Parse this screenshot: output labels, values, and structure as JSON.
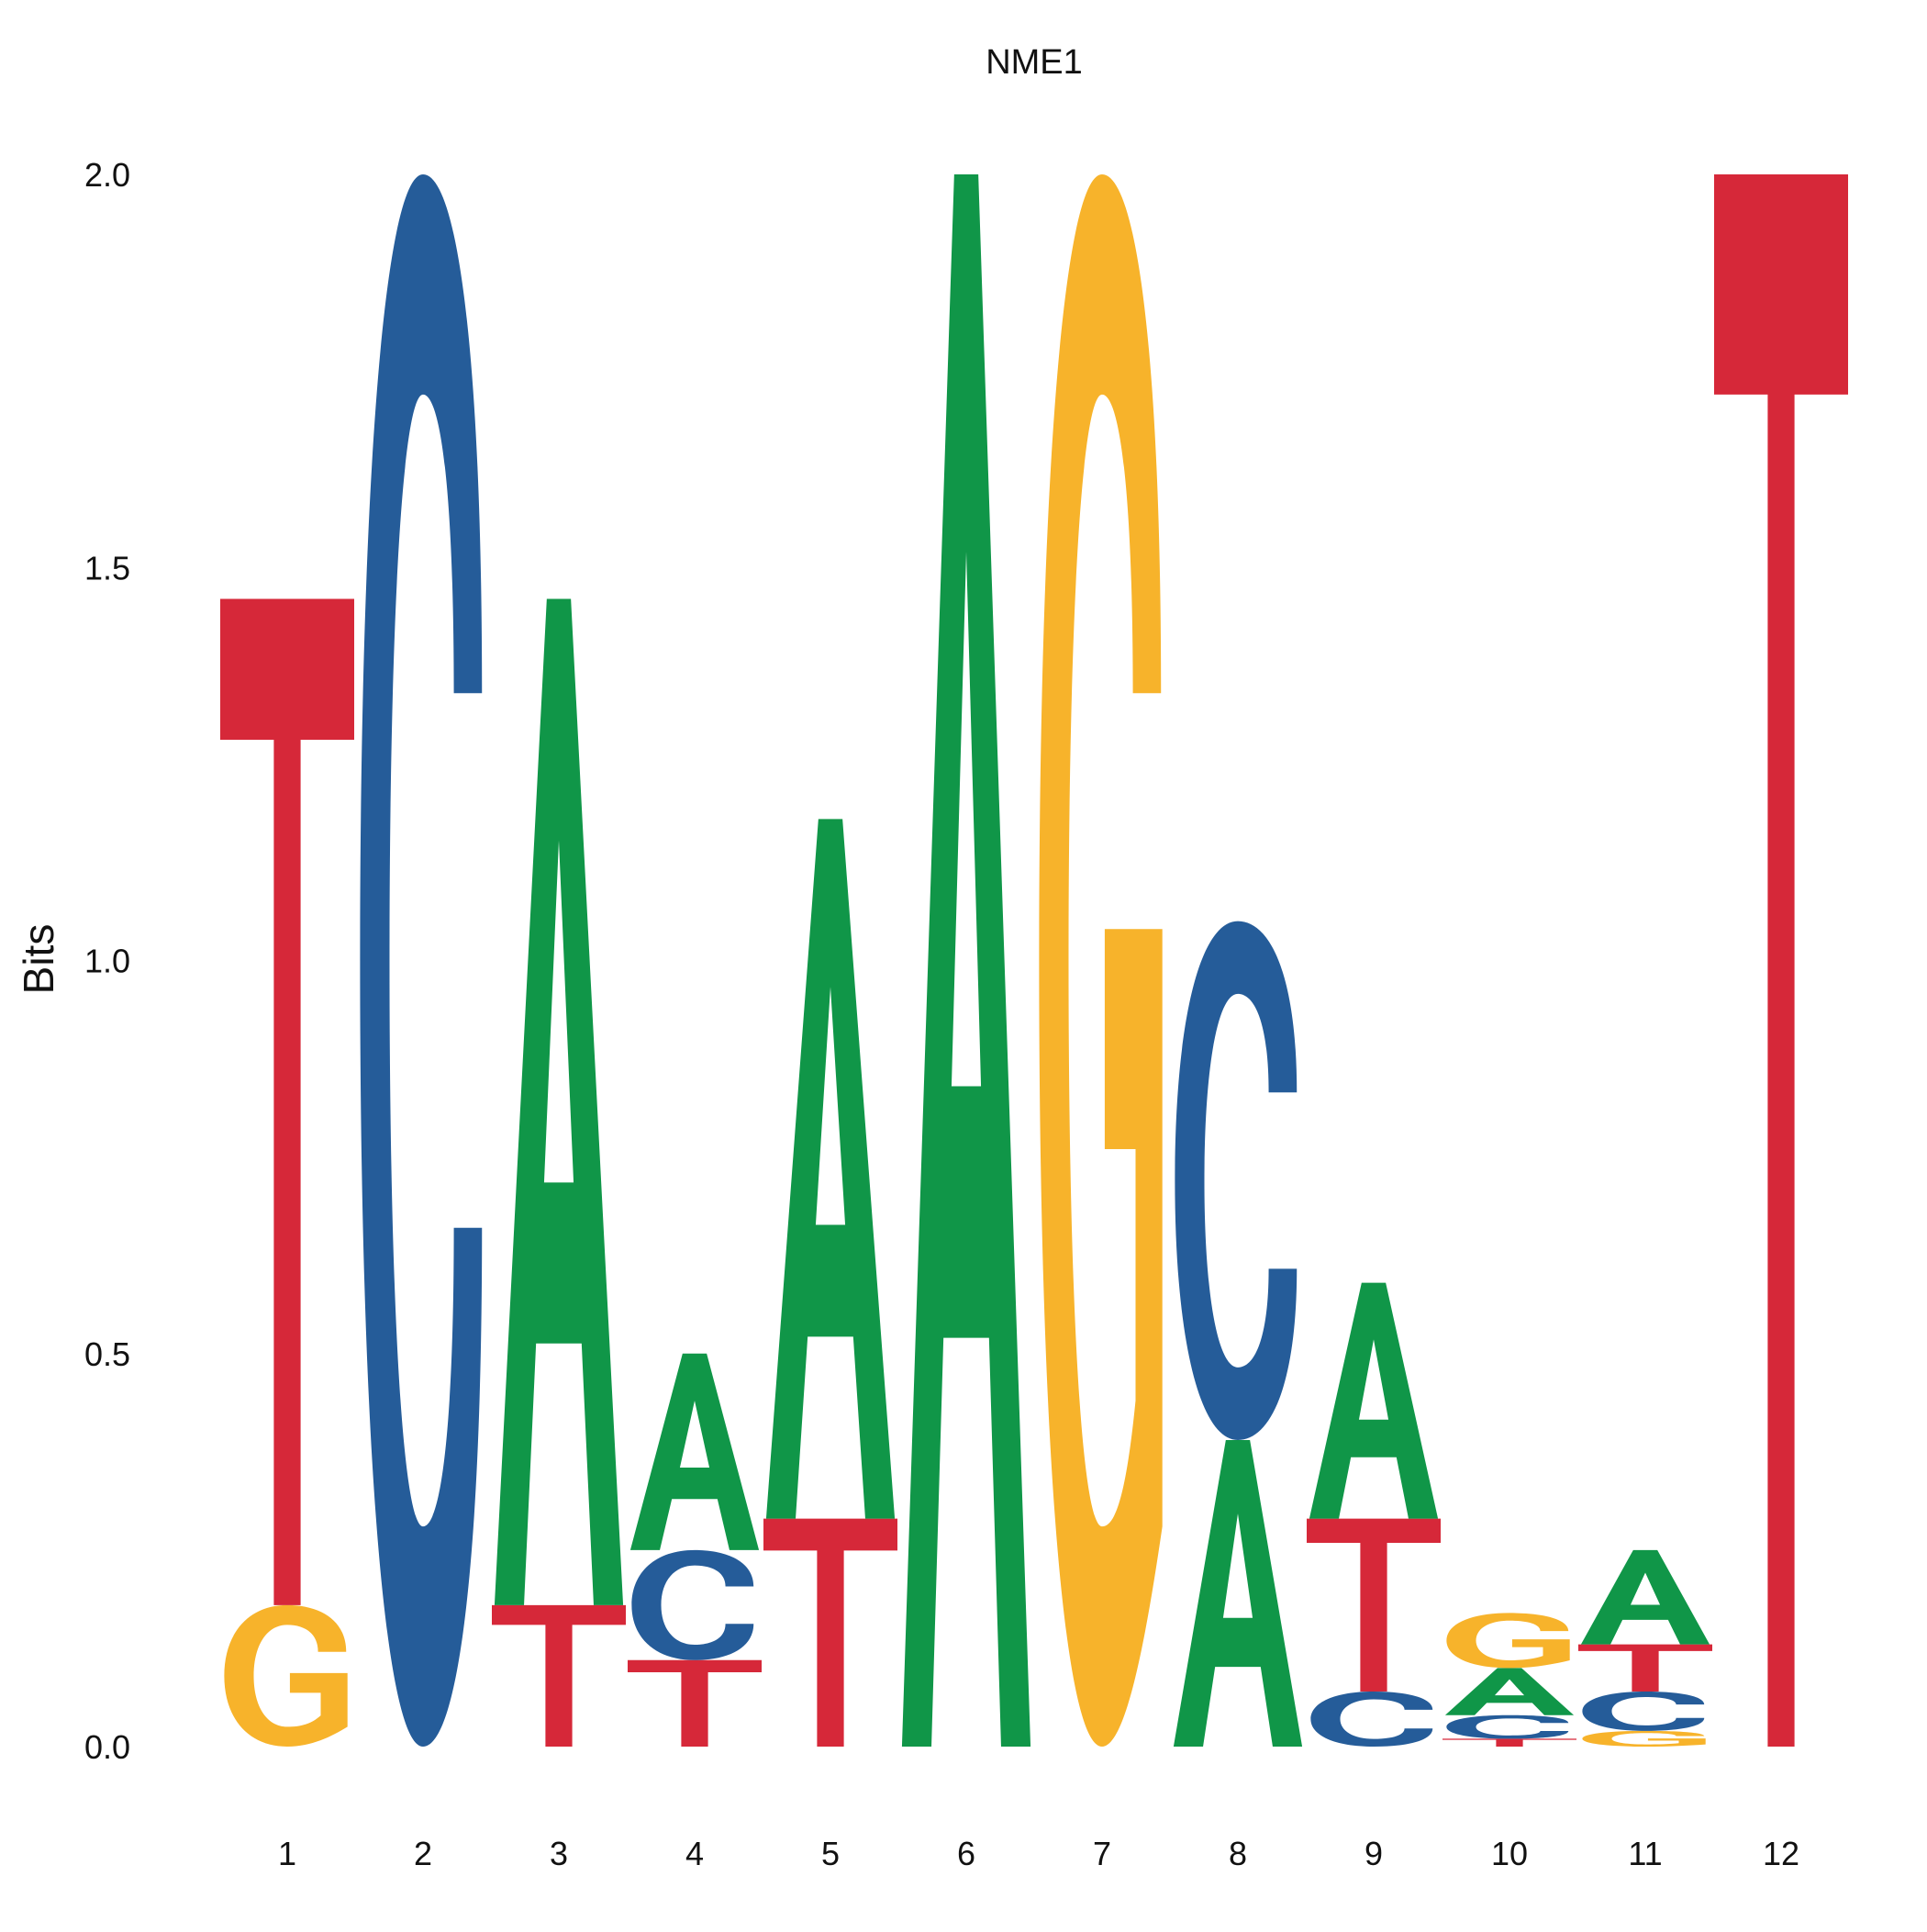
{
  "chart_data": {
    "type": "sequence-logo",
    "title": "NME1",
    "xlabel": "",
    "ylabel": "Bits",
    "ylim": [
      0,
      2
    ],
    "yticks": [
      {
        "value": 0,
        "label": "0.0"
      },
      {
        "value": 0.5,
        "label": "0.5"
      },
      {
        "value": 1,
        "label": "1.0"
      },
      {
        "value": 1.5,
        "label": "1.5"
      },
      {
        "value": 2,
        "label": "2.0"
      }
    ],
    "grid": false,
    "colors": {
      "A": "#109648",
      "C": "#255C99",
      "G": "#F7B32B",
      "T": "#D62839"
    },
    "positions": [
      {
        "label": "1",
        "letters": [
          {
            "base": "G",
            "bits": 0.18
          },
          {
            "base": "T",
            "bits": 1.28
          }
        ]
      },
      {
        "label": "2",
        "letters": [
          {
            "base": "C",
            "bits": 2.0
          }
        ]
      },
      {
        "label": "3",
        "letters": [
          {
            "base": "T",
            "bits": 0.18
          },
          {
            "base": "A",
            "bits": 1.28
          }
        ]
      },
      {
        "label": "4",
        "letters": [
          {
            "base": "T",
            "bits": 0.11
          },
          {
            "base": "C",
            "bits": 0.14
          },
          {
            "base": "A",
            "bits": 0.25
          }
        ]
      },
      {
        "label": "5",
        "letters": [
          {
            "base": "T",
            "bits": 0.29
          },
          {
            "base": "A",
            "bits": 0.89
          }
        ]
      },
      {
        "label": "6",
        "letters": [
          {
            "base": "A",
            "bits": 2.0
          }
        ]
      },
      {
        "label": "7",
        "letters": [
          {
            "base": "G",
            "bits": 2.0
          }
        ]
      },
      {
        "label": "8",
        "letters": [
          {
            "base": "A",
            "bits": 0.39
          },
          {
            "base": "C",
            "bits": 0.66
          }
        ]
      },
      {
        "label": "9",
        "letters": [
          {
            "base": "C",
            "bits": 0.07
          },
          {
            "base": "T",
            "bits": 0.22
          },
          {
            "base": "A",
            "bits": 0.3
          }
        ]
      },
      {
        "label": "10",
        "letters": [
          {
            "base": "T",
            "bits": 0.01
          },
          {
            "base": "C",
            "bits": 0.03
          },
          {
            "base": "A",
            "bits": 0.06
          },
          {
            "base": "G",
            "bits": 0.07
          }
        ]
      },
      {
        "label": "11",
        "letters": [
          {
            "base": "G",
            "bits": 0.02
          },
          {
            "base": "C",
            "bits": 0.05
          },
          {
            "base": "T",
            "bits": 0.06
          },
          {
            "base": "A",
            "bits": 0.12
          }
        ]
      },
      {
        "label": "12",
        "letters": [
          {
            "base": "T",
            "bits": 2.0
          }
        ]
      }
    ]
  }
}
